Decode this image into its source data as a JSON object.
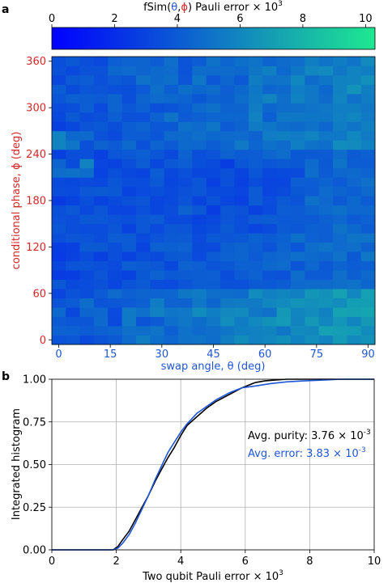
{
  "chart_data": [
    {
      "type": "heatmap",
      "panel_label": "a",
      "colorbar": {
        "title_parts": [
          "fSim(",
          "θ",
          ",",
          "ϕ",
          ") Pauli error × 10",
          "3"
        ],
        "ticks": [
          "0",
          "2",
          "4",
          "6",
          "8",
          "10"
        ],
        "range": [
          0,
          10.3
        ],
        "cmap": [
          "#0000ff",
          "#1ee890"
        ]
      },
      "xlabel": "swap angle, θ (deg)",
      "ylabel": "conditional phase, ϕ (deg)",
      "xticks": [
        "0",
        "15",
        "30",
        "45",
        "60",
        "75",
        "90"
      ],
      "yticks": [
        "0",
        "60",
        "120",
        "180",
        "240",
        "300",
        "360"
      ],
      "xrange": [
        -2,
        92
      ],
      "yrange": [
        -6,
        366
      ],
      "colors": {
        "x_axis_text": "#1f56d6",
        "y_axis_text": "#d62728"
      },
      "grid": {
        "n_theta": 23,
        "n_phi": 31,
        "dtheta_deg": 4.09,
        "dphi_deg": 12
      }
    },
    {
      "type": "line",
      "panel_label": "b",
      "xlabel_parts": [
        "Two qubit Pauli error × 10",
        "3"
      ],
      "ylabel": "Integrated histogram",
      "xticks": [
        "0",
        "2",
        "4",
        "6",
        "8",
        "10"
      ],
      "yticks": [
        "0.00",
        "0.25",
        "0.50",
        "0.75",
        "1.00"
      ],
      "xlim": [
        0,
        10
      ],
      "ylim": [
        0,
        1
      ],
      "grid": true,
      "series": [
        {
          "color": "#000000",
          "x": [
            0,
            1.9,
            2.05,
            2.2,
            2.4,
            2.6,
            2.8,
            3.0,
            3.2,
            3.4,
            3.6,
            3.8,
            4.0,
            4.2,
            4.5,
            4.8,
            5.1,
            5.5,
            5.9,
            6.3,
            6.6,
            6.9,
            7.3,
            8,
            10
          ],
          "y": [
            0,
            0,
            0.02,
            0.06,
            0.11,
            0.18,
            0.25,
            0.32,
            0.4,
            0.47,
            0.54,
            0.6,
            0.67,
            0.73,
            0.78,
            0.83,
            0.87,
            0.91,
            0.95,
            0.98,
            0.99,
            0.995,
            1.0,
            1.0,
            1.0
          ]
        },
        {
          "color": "#1f56d6",
          "x": [
            0,
            1.9,
            2.05,
            2.2,
            2.4,
            2.6,
            2.8,
            3.0,
            3.2,
            3.4,
            3.6,
            3.8,
            4.0,
            4.2,
            4.5,
            4.8,
            5.1,
            5.5,
            5.9,
            6.3,
            6.8,
            7.3,
            7.8,
            8.4,
            9.0,
            10
          ],
          "y": [
            0,
            0,
            0.01,
            0.04,
            0.09,
            0.16,
            0.24,
            0.32,
            0.41,
            0.49,
            0.57,
            0.63,
            0.69,
            0.74,
            0.8,
            0.84,
            0.88,
            0.92,
            0.95,
            0.96,
            0.975,
            0.985,
            0.99,
            0.995,
            1.0,
            1.0
          ]
        }
      ],
      "annotations": [
        {
          "text_parts": [
            "Avg. purity: 3.76 × 10",
            "-3"
          ],
          "color": "#000000"
        },
        {
          "text_parts": [
            "Avg. error: 3.83 × 10",
            "-3"
          ],
          "color": "#1f56d6"
        }
      ]
    }
  ]
}
